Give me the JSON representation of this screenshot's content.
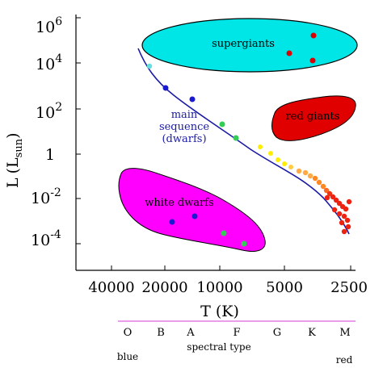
{
  "axes": {
    "y_label_main": "L",
    "y_label_paren_open": "(L",
    "y_label_sub": "sun",
    "y_label_paren_close": ")",
    "y_ticks": [
      {
        "base": "10",
        "exp": "6"
      },
      {
        "base": "10",
        "exp": "4"
      },
      {
        "base": "10",
        "exp": "2"
      },
      {
        "base": "1",
        "exp": ""
      },
      {
        "base": "10",
        "exp": "-2"
      },
      {
        "base": "10",
        "exp": "-4"
      }
    ],
    "x_ticks": [
      "40000",
      "20000",
      "10000",
      "5000",
      "2500"
    ],
    "x_label": "T (K)"
  },
  "regions": {
    "supergiants": "supergiants",
    "red_giants": "red giants",
    "white_dwarfs": "white dwarfs",
    "main_sequence_line1": "main",
    "main_sequence_line2": "sequence",
    "main_sequence_line3": "(dwarfs)"
  },
  "spectral": {
    "types": [
      "O",
      "B",
      "A",
      "F",
      "G",
      "K",
      "M"
    ],
    "title": "spectral type",
    "left_end": "blue",
    "right_end": "red"
  },
  "colors": {
    "supergiants_fill": "#00e5e5",
    "red_giants_fill": "#e00000",
    "white_dwarfs_fill": "#ff00ff",
    "main_sequence_line": "#1a1aa6",
    "main_sequence_text": "#1a1aa6",
    "spectral_rule": "#e060e0"
  }
}
